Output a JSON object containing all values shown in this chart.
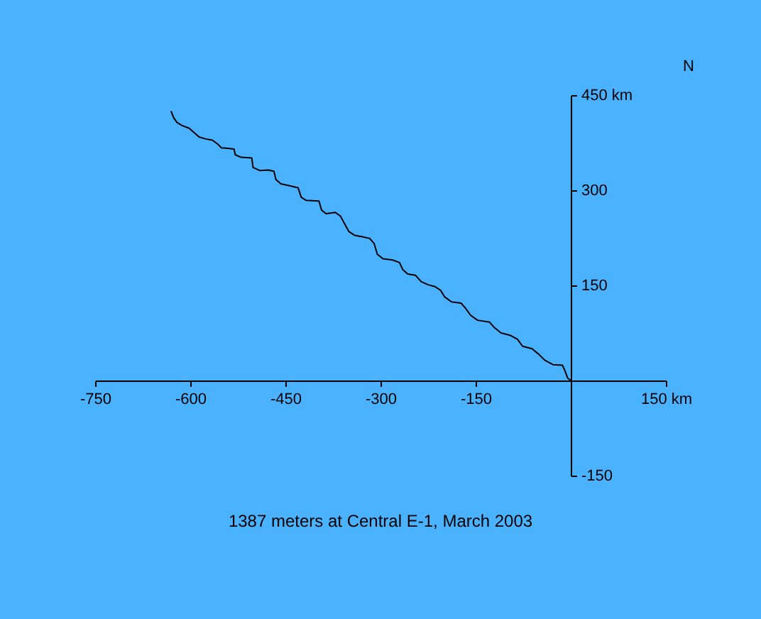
{
  "chart_data": {
    "type": "line",
    "title": "1387 meters at Central E-1, March 2003",
    "x": [
      -630,
      -626,
      -621,
      -613,
      -602,
      -593,
      -586,
      -576,
      -565,
      -557,
      -551,
      -540,
      -531,
      -529,
      -520,
      -503,
      -501,
      -490,
      -477,
      -468,
      -465,
      -457,
      -443,
      -430,
      -425,
      -417,
      -397,
      -393,
      -386,
      -371,
      -363,
      -356,
      -350,
      -341,
      -330,
      -317,
      -310,
      -305,
      -296,
      -281,
      -270,
      -265,
      -257,
      -245,
      -236,
      -225,
      -214,
      -205,
      -199,
      -188,
      -173,
      -166,
      -158,
      -147,
      -128,
      -121,
      -110,
      -95,
      -84,
      -76,
      -61,
      -50,
      -41,
      -28,
      -13,
      -9,
      -5,
      0
    ],
    "series": [
      {
        "color": "#000000",
        "values": [
          424,
          414,
          407,
          402,
          398,
          390,
          384,
          381,
          379,
          373,
          367,
          366,
          365,
          356,
          352,
          351,
          336,
          331,
          332,
          330,
          317,
          310,
          307,
          304,
          289,
          284,
          283,
          269,
          263,
          265,
          259,
          246,
          235,
          229,
          227,
          224,
          216,
          199,
          192,
          190,
          186,
          175,
          168,
          166,
          156,
          151,
          148,
          142,
          132,
          124,
          122,
          114,
          103,
          95,
          92,
          84,
          75,
          71,
          65,
          54,
          50,
          41,
          32,
          25,
          24,
          15,
          4,
          0
        ]
      }
    ],
    "xlim": [
      -750,
      150
    ],
    "ylim": [
      -150,
      450
    ],
    "xticks": [
      -750,
      -600,
      -450,
      -300,
      -150,
      {
        "value": 150,
        "label": "150 km"
      }
    ],
    "yticks": [
      -150,
      150,
      300,
      {
        "value": 450,
        "label": "450 km"
      }
    ],
    "line_style": "solid",
    "annotations": [
      "N"
    ]
  }
}
